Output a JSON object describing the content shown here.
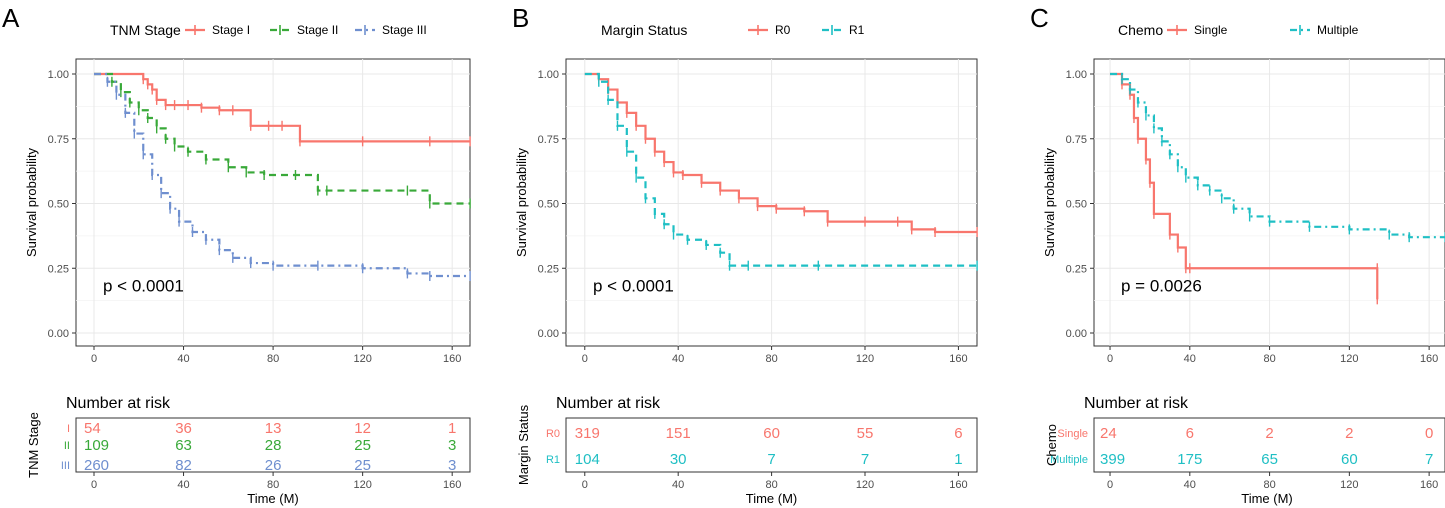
{
  "chart_data": [
    {
      "type": "line",
      "subtype": "kaplan-meier",
      "panel_label": "A",
      "legend_title": "TNM Stage",
      "p_value": "p < 0.0001",
      "xlabel": "Time (M)",
      "ylabel": "Survival probability",
      "xlim": [
        0,
        168
      ],
      "ylim": [
        0,
        1
      ],
      "x_ticks": [
        0,
        40,
        80,
        120,
        160
      ],
      "y_ticks": [
        0.0,
        0.25,
        0.5,
        0.75,
        1.0
      ],
      "x_tick_labels": [
        "0",
        "40",
        "80",
        "120",
        "160"
      ],
      "y_tick_labels": [
        "0.00",
        "0.25",
        "0.50",
        "0.75",
        "1.00"
      ],
      "risk_title": "Number at risk",
      "risk_axis_label": "TNM Stage",
      "series": [
        {
          "name": "Stage I",
          "risk_label": "I",
          "color": "#F8766D",
          "dash": "solid",
          "x": [
            0,
            22,
            24,
            26,
            28,
            32,
            36,
            42,
            48,
            56,
            62,
            70,
            78,
            84,
            92,
            120,
            150,
            168
          ],
          "y": [
            1.0,
            0.98,
            0.96,
            0.94,
            0.9,
            0.88,
            0.88,
            0.88,
            0.87,
            0.86,
            0.86,
            0.8,
            0.8,
            0.8,
            0.74,
            0.74,
            0.74,
            0.74
          ],
          "risk": [
            "54",
            "36",
            "13",
            "12",
            "1"
          ]
        },
        {
          "name": "Stage II",
          "risk_label": "II",
          "color": "#39A939",
          "dash": "dashed",
          "x": [
            0,
            8,
            12,
            16,
            20,
            24,
            28,
            32,
            36,
            42,
            50,
            60,
            68,
            76,
            90,
            100,
            104,
            140,
            150,
            168
          ],
          "y": [
            1.0,
            0.97,
            0.93,
            0.89,
            0.86,
            0.83,
            0.79,
            0.75,
            0.72,
            0.7,
            0.67,
            0.64,
            0.62,
            0.61,
            0.61,
            0.55,
            0.55,
            0.55,
            0.5,
            0.5
          ],
          "risk": [
            "109",
            "63",
            "28",
            "25",
            "3"
          ]
        },
        {
          "name": "Stage III",
          "risk_label": "III",
          "color": "#6F8FCF",
          "dash": "dotdash",
          "x": [
            0,
            6,
            10,
            14,
            18,
            22,
            26,
            30,
            34,
            38,
            44,
            50,
            56,
            62,
            70,
            80,
            100,
            120,
            140,
            150,
            168
          ],
          "y": [
            1.0,
            0.97,
            0.92,
            0.85,
            0.77,
            0.69,
            0.61,
            0.54,
            0.48,
            0.43,
            0.39,
            0.36,
            0.32,
            0.29,
            0.27,
            0.26,
            0.26,
            0.25,
            0.23,
            0.22,
            0.22
          ],
          "risk": [
            "260",
            "82",
            "26",
            "25",
            "3"
          ]
        }
      ]
    },
    {
      "type": "line",
      "subtype": "kaplan-meier",
      "panel_label": "B",
      "legend_title": "Margin Status",
      "p_value": "p < 0.0001",
      "xlabel": "Time (M)",
      "ylabel": "Survival probability",
      "xlim": [
        0,
        168
      ],
      "ylim": [
        0,
        1
      ],
      "x_ticks": [
        0,
        40,
        80,
        120,
        160
      ],
      "y_ticks": [
        0.0,
        0.25,
        0.5,
        0.75,
        1.0
      ],
      "x_tick_labels": [
        "0",
        "40",
        "80",
        "120",
        "160"
      ],
      "y_tick_labels": [
        "0.00",
        "0.25",
        "0.50",
        "0.75",
        "1.00"
      ],
      "risk_title": "Number at risk",
      "risk_axis_label": "Margin Status",
      "series": [
        {
          "name": "R0",
          "risk_label": "R0",
          "color": "#F8766D",
          "dash": "solid",
          "x": [
            0,
            6,
            10,
            14,
            18,
            22,
            26,
            30,
            34,
            38,
            42,
            50,
            58,
            66,
            74,
            82,
            94,
            104,
            120,
            134,
            140,
            150,
            168
          ],
          "y": [
            1.0,
            0.98,
            0.94,
            0.89,
            0.85,
            0.8,
            0.75,
            0.7,
            0.66,
            0.62,
            0.61,
            0.58,
            0.55,
            0.52,
            0.49,
            0.48,
            0.47,
            0.43,
            0.43,
            0.43,
            0.4,
            0.39,
            0.39
          ],
          "risk": [
            "319",
            "151",
            "60",
            "55",
            "6"
          ]
        },
        {
          "name": "R1",
          "risk_label": "R1",
          "color": "#1FBFC4",
          "dash": "dashed",
          "x": [
            0,
            6,
            10,
            14,
            18,
            22,
            26,
            30,
            34,
            38,
            44,
            52,
            58,
            62,
            70,
            100,
            168
          ],
          "y": [
            1.0,
            0.97,
            0.9,
            0.8,
            0.7,
            0.6,
            0.52,
            0.46,
            0.42,
            0.38,
            0.36,
            0.34,
            0.31,
            0.26,
            0.26,
            0.26,
            0.26
          ],
          "risk": [
            "104",
            "30",
            "7",
            "7",
            "1"
          ]
        }
      ]
    },
    {
      "type": "line",
      "subtype": "kaplan-meier",
      "panel_label": "C",
      "legend_title": "Chemo",
      "p_value": "p = 0.0026",
      "xlabel": "Time (M)",
      "ylabel": "Survival probability",
      "xlim": [
        0,
        168
      ],
      "ylim": [
        0,
        1
      ],
      "x_ticks": [
        0,
        40,
        80,
        120,
        160
      ],
      "y_ticks": [
        0.0,
        0.25,
        0.5,
        0.75,
        1.0
      ],
      "x_tick_labels": [
        "0",
        "40",
        "80",
        "120",
        "160"
      ],
      "y_tick_labels": [
        "0.00",
        "0.25",
        "0.50",
        "0.75",
        "1.00"
      ],
      "risk_title": "Number at risk",
      "risk_axis_label": "Chemo",
      "series": [
        {
          "name": "Single",
          "risk_label": "Single",
          "color": "#F8766D",
          "dash": "solid",
          "x": [
            0,
            6,
            10,
            12,
            14,
            18,
            20,
            22,
            30,
            34,
            38,
            40,
            134,
            134
          ],
          "y": [
            1.0,
            0.96,
            0.92,
            0.83,
            0.75,
            0.67,
            0.58,
            0.46,
            0.38,
            0.33,
            0.25,
            0.25,
            0.25,
            0.13
          ],
          "risk": [
            "24",
            "6",
            "2",
            "2",
            "0"
          ]
        },
        {
          "name": "Multiple",
          "risk_label": "Multiple",
          "color": "#1FBFC4",
          "dash": "dotdash",
          "x": [
            0,
            6,
            10,
            14,
            18,
            22,
            26,
            30,
            34,
            38,
            44,
            50,
            56,
            62,
            70,
            80,
            100,
            120,
            140,
            150,
            168
          ],
          "y": [
            1.0,
            0.98,
            0.94,
            0.89,
            0.84,
            0.79,
            0.74,
            0.69,
            0.64,
            0.6,
            0.57,
            0.55,
            0.52,
            0.48,
            0.45,
            0.43,
            0.41,
            0.4,
            0.38,
            0.37,
            0.37
          ],
          "risk": [
            "399",
            "175",
            "65",
            "60",
            "7"
          ]
        }
      ]
    }
  ]
}
